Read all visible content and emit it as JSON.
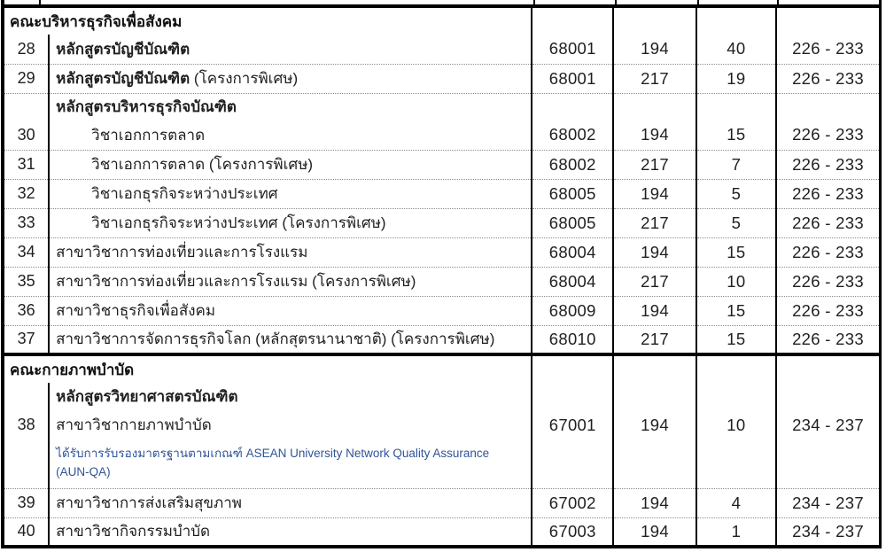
{
  "document": {
    "kind": "university-admission-program-table",
    "colors": {
      "border": "#000000",
      "dotted_separator": "#8c8c8c",
      "text": "#1f1f1f",
      "note_blue": "#2F5496"
    },
    "sections": [
      {
        "title": "คณะบริหารธุรกิจเพื่อสังคม",
        "rows": [
          {
            "type": "program",
            "no": "28",
            "name": "หลักสูตรบัญชีบัณฑิต",
            "paren": "",
            "name_bold": true,
            "indent": false,
            "code": "68001",
            "num1": "194",
            "num2": "40",
            "range": "226 - 233"
          },
          {
            "type": "program",
            "no": "29",
            "name": "หลักสูตรบัญชีบัณฑิต",
            "paren": "(โครงการพิเศษ)",
            "name_bold": true,
            "indent": false,
            "code": "68001",
            "num1": "217",
            "num2": "19",
            "range": "226 - 233"
          },
          {
            "type": "subheader",
            "text": "หลักสูตรบริหารธุรกิจบัณฑิต"
          },
          {
            "type": "program",
            "no": "30",
            "name": "วิชาเอกการตลาด",
            "paren": "",
            "name_bold": false,
            "indent": true,
            "code": "68002",
            "num1": "194",
            "num2": "15",
            "range": "226 - 233"
          },
          {
            "type": "program",
            "no": "31",
            "name": "วิชาเอกการตลาด (โครงการพิเศษ)",
            "paren": "",
            "name_bold": false,
            "indent": true,
            "code": "68002",
            "num1": "217",
            "num2": "7",
            "range": "226 - 233"
          },
          {
            "type": "program",
            "no": "32",
            "name": "วิชาเอกธุรกิจระหว่างประเทศ",
            "paren": "",
            "name_bold": false,
            "indent": true,
            "code": "68005",
            "num1": "194",
            "num2": "5",
            "range": "226 - 233"
          },
          {
            "type": "program",
            "no": "33",
            "name": "วิชาเอกธุรกิจระหว่างประเทศ (โครงการพิเศษ)",
            "paren": "",
            "name_bold": false,
            "indent": true,
            "code": "68005",
            "num1": "217",
            "num2": "5",
            "range": "226 - 233"
          },
          {
            "type": "program",
            "no": "34",
            "name": "สาขาวิชาการท่องเที่ยวและการโรงแรม",
            "paren": "",
            "name_bold": false,
            "indent": false,
            "code": "68004",
            "num1": "194",
            "num2": "15",
            "range": "226 - 233"
          },
          {
            "type": "program",
            "no": "35",
            "name": "สาขาวิชาการท่องเที่ยวและการโรงแรม (โครงการพิเศษ)",
            "paren": "",
            "name_bold": false,
            "indent": false,
            "code": "68004",
            "num1": "217",
            "num2": "10",
            "range": "226 - 233"
          },
          {
            "type": "program",
            "no": "36",
            "name": "สาขาวิชาธุรกิจเพื่อสังคม",
            "paren": "",
            "name_bold": false,
            "indent": false,
            "code": "68009",
            "num1": "194",
            "num2": "15",
            "range": "226 - 233"
          },
          {
            "type": "program",
            "no": "37",
            "name": "สาขาวิชาการจัดการธุรกิจโลก (หลักสุตรนานาชาติ) (โครงการพิเศษ)",
            "paren": "",
            "name_bold": false,
            "indent": false,
            "code": "68010",
            "num1": "217",
            "num2": "15",
            "range": "226 - 233"
          }
        ]
      },
      {
        "title": "คณะกายภาพบำบัด",
        "rows": [
          {
            "type": "subheader",
            "text": "หลักสูตรวิทยาศาสตรบัณฑิต"
          },
          {
            "type": "program",
            "no": "38",
            "name": "สาขาวิชากายภาพบำบัด",
            "paren": "",
            "name_bold": false,
            "indent": false,
            "code": "67001",
            "num1": "194",
            "num2": "10",
            "range": "234 - 237"
          },
          {
            "type": "note",
            "line1": "ได้รับการรับรองมาตรฐานตามเกณฑ์ ASEAN University Network Quality Assurance",
            "line2": "(AUN-QA)"
          },
          {
            "type": "program",
            "no": "39",
            "name": "สาขาวิชาการส่งเสริมสุขภาพ",
            "paren": "",
            "name_bold": false,
            "indent": false,
            "code": "67002",
            "num1": "194",
            "num2": "4",
            "range": "234 - 237"
          },
          {
            "type": "program",
            "no": "40",
            "name": "สาขาวิชากิจกรรมบำบัด",
            "paren": "",
            "name_bold": false,
            "indent": false,
            "code": "67003",
            "num1": "194",
            "num2": "1",
            "range": "234 - 237"
          }
        ]
      }
    ]
  }
}
